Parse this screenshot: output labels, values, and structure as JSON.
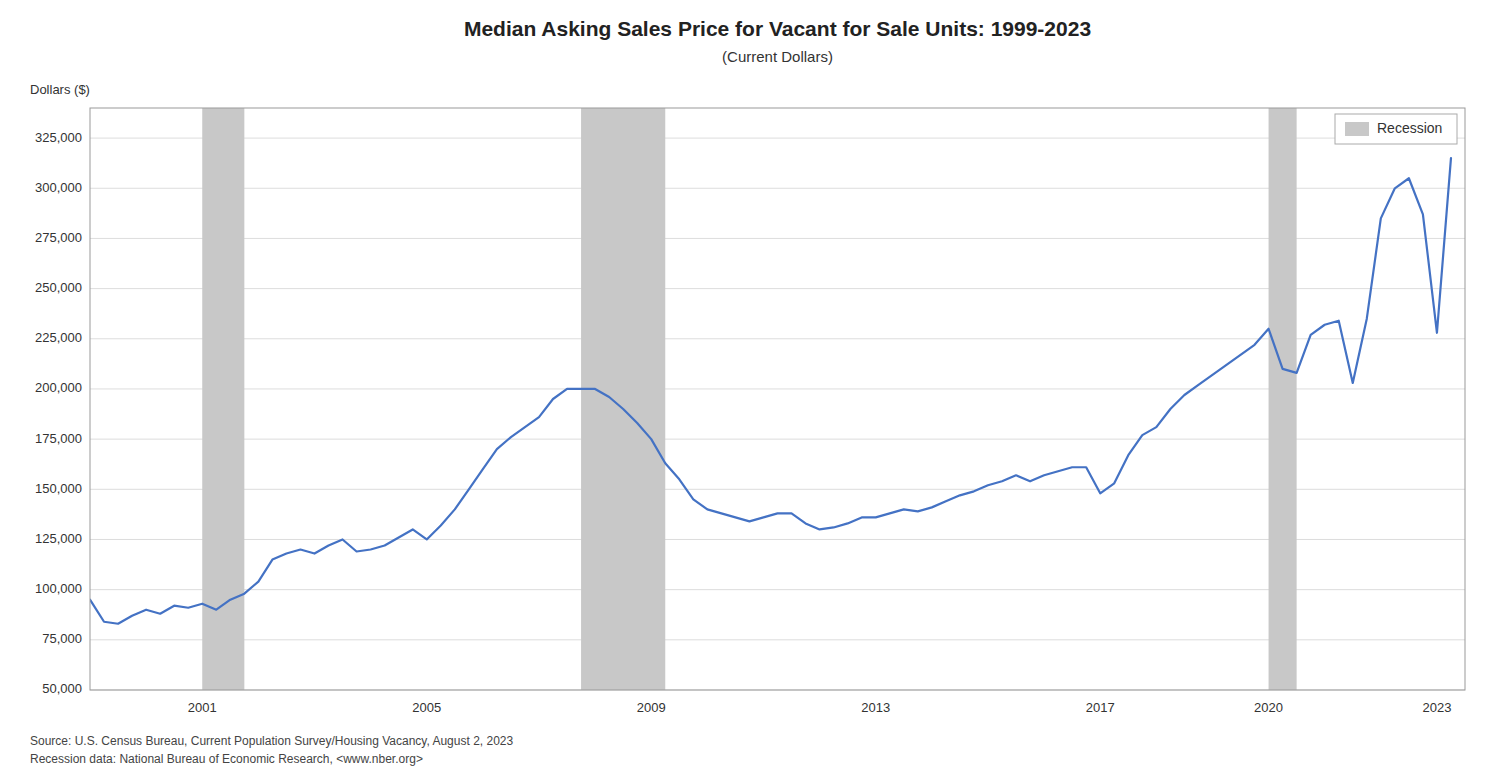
{
  "chart_data": {
    "type": "line",
    "title": "Median Asking Sales Price for Vacant for Sale Units: 1999-2023",
    "subtitle": "(Current Dollars)",
    "y_label": "Dollars ($)",
    "source": "Source: U.S. Census Bureau, Current Population Survey/Housing Vacancy, August 2, 2023\nRecession data: National Bureau of Economic Research, <www.nber.org>",
    "legend": "upper right",
    "grid": true,
    "recession_label": "Recession",
    "recession_color": "#C8C8C8",
    "recession_periods": [
      [
        2001.0,
        2001.75
      ],
      [
        2007.75,
        2009.25
      ],
      [
        2020.0,
        2020.5
      ]
    ],
    "xlim": [
      1999.0,
      2023.5
    ],
    "ylim": [
      50000,
      340000
    ],
    "xticks": [
      2001,
      2005,
      2009,
      2013,
      2017,
      2020,
      2023
    ],
    "yticks": [
      {
        "value": 50000,
        "label": "50,000"
      },
      {
        "value": 75000,
        "label": "75,000"
      },
      {
        "value": 100000,
        "label": "100,000"
      },
      {
        "value": 125000,
        "label": "125,000"
      },
      {
        "value": 150000,
        "label": "150,000"
      },
      {
        "value": 175000,
        "label": "175,000"
      },
      {
        "value": 200000,
        "label": "200,000"
      },
      {
        "value": 225000,
        "label": "225,000"
      },
      {
        "value": 250000,
        "label": "250,000"
      },
      {
        "value": 275000,
        "label": "275,000"
      },
      {
        "value": 300000,
        "label": "300,000"
      },
      {
        "value": 325000,
        "label": "325,000"
      }
    ],
    "x": [
      1999.0,
      1999.25,
      1999.5,
      1999.75,
      2000.0,
      2000.25,
      2000.5,
      2000.75,
      2001.0,
      2001.25,
      2001.5,
      2001.75,
      2002.0,
      2002.25,
      2002.5,
      2002.75,
      2003.0,
      2003.25,
      2003.5,
      2003.75,
      2004.0,
      2004.25,
      2004.5,
      2004.75,
      2005.0,
      2005.25,
      2005.5,
      2005.75,
      2006.0,
      2006.25,
      2006.5,
      2006.75,
      2007.0,
      2007.25,
      2007.5,
      2007.75,
      2008.0,
      2008.25,
      2008.5,
      2008.75,
      2009.0,
      2009.25,
      2009.5,
      2009.75,
      2010.0,
      2010.25,
      2010.5,
      2010.75,
      2011.0,
      2011.25,
      2011.5,
      2011.75,
      2012.0,
      2012.25,
      2012.5,
      2012.75,
      2013.0,
      2013.25,
      2013.5,
      2013.75,
      2014.0,
      2014.25,
      2014.5,
      2014.75,
      2015.0,
      2015.25,
      2015.5,
      2015.75,
      2016.0,
      2016.25,
      2016.5,
      2016.75,
      2017.0,
      2017.25,
      2017.5,
      2017.75,
      2018.0,
      2018.25,
      2018.5,
      2018.75,
      2019.0,
      2019.25,
      2019.5,
      2019.75,
      2020.0,
      2020.25,
      2020.5,
      2020.75,
      2021.0,
      2021.25,
      2021.5,
      2021.75,
      2022.0,
      2022.25,
      2022.5,
      2022.75,
      2023.0,
      2023.25
    ],
    "series": [
      {
        "color": "#4472C4",
        "values": [
          95000,
          84000,
          83000,
          87000,
          90000,
          88000,
          92000,
          91000,
          93000,
          90000,
          95000,
          98000,
          104000,
          115000,
          118000,
          120000,
          118000,
          122000,
          125000,
          119000,
          120000,
          122000,
          126000,
          130000,
          125000,
          132000,
          140000,
          150000,
          160000,
          170000,
          176000,
          181000,
          186000,
          195000,
          200000,
          200000,
          200000,
          196000,
          190000,
          183000,
          175000,
          163000,
          155000,
          145000,
          140000,
          138000,
          136000,
          134000,
          136000,
          138000,
          138000,
          133000,
          130000,
          131000,
          133000,
          136000,
          136000,
          138000,
          140000,
          139000,
          141000,
          144000,
          147000,
          149000,
          152000,
          154000,
          157000,
          154000,
          157000,
          159000,
          161000,
          161000,
          148000,
          153000,
          167000,
          177000,
          181000,
          190000,
          197000,
          202000,
          207000,
          212000,
          217000,
          222000,
          230000,
          210000,
          208000,
          227000,
          232000,
          234000,
          203000,
          235000,
          285000,
          300000,
          305000,
          287000,
          228000,
          315000
        ]
      }
    ]
  }
}
